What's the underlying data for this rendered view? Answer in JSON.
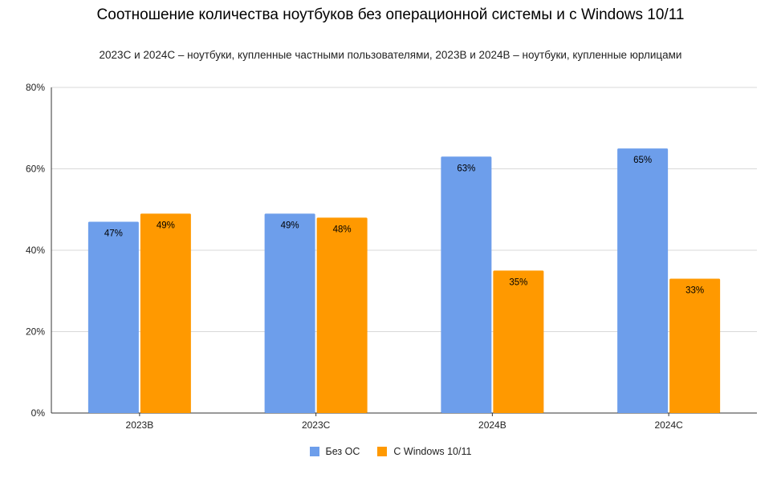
{
  "chart_data": {
    "type": "bar",
    "title": "Соотношение количества ноутбуков без операционной системы и с Windows 10/11",
    "subtitle": "2023С и 2024С – ноутбуки, купленные частными пользователями, 2023В и 2024В – ноутбуки, купленные юрлицами",
    "categories": [
      "2023В",
      "2023С",
      "2024В",
      "2024С"
    ],
    "series": [
      {
        "name": "Без ОС",
        "color": "#6d9eeb",
        "values": [
          47,
          49,
          63,
          65
        ],
        "labels": [
          "47%",
          "49%",
          "63%",
          "65%"
        ]
      },
      {
        "name": "С Windows 10/11",
        "color": "#ff9900",
        "values": [
          49,
          48,
          35,
          33
        ],
        "labels": [
          "49%",
          "48%",
          "35%",
          "33%"
        ]
      }
    ],
    "ylim": [
      0,
      80
    ],
    "yticks": [
      0,
      20,
      40,
      60,
      80
    ],
    "ytick_labels": [
      "0%",
      "20%",
      "40%",
      "60%",
      "80%"
    ],
    "xlabel": "",
    "ylabel": "",
    "grid": true,
    "legend_position": "bottom"
  }
}
